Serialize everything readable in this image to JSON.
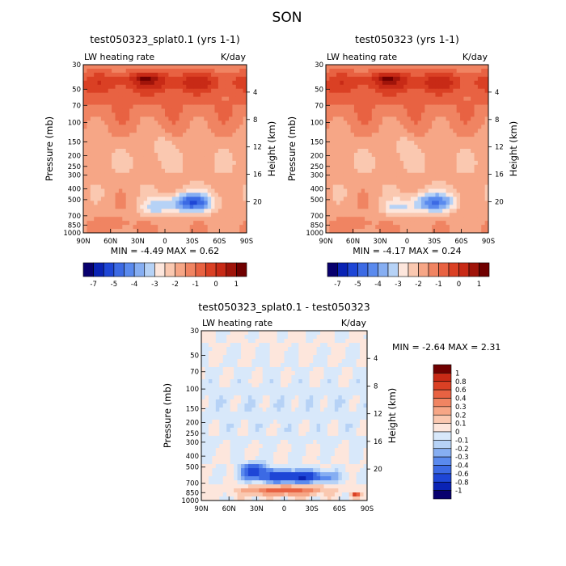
{
  "chart_data": {
    "type": "heatmap",
    "title": "SON",
    "colors": {
      "full_scale": [
        "#08006e",
        "#0a23b4",
        "#1e46d6",
        "#3c6ae4",
        "#5a8aee",
        "#86aef2",
        "#b6d2f6",
        "#fde6dc",
        "#fac8b0",
        "#f6a686",
        "#f08462",
        "#e86242",
        "#da4024",
        "#c82a16",
        "#a0140a",
        "#700000"
      ],
      "diff_scale": [
        "#08006e",
        "#0a23b4",
        "#1e46d6",
        "#3c6ae4",
        "#5a8aee",
        "#86aef2",
        "#b6d2f6",
        "#d8e8fa",
        "#fde6dc",
        "#fac8b0",
        "#f6a686",
        "#f08462",
        "#e86242",
        "#da4024",
        "#c82a16",
        "#700000"
      ]
    },
    "panels": [
      {
        "id": "p1",
        "title": "test050323_splat0.1 (yrs 1-1)",
        "left_label": "LW heating rate",
        "right_label": "K/day",
        "min_max": "MIN =   -4.49   MAX =    0.62",
        "colorbar_labels": [
          "-7",
          "-5",
          "-4",
          "-3",
          "-2",
          "-1",
          "0",
          "1"
        ]
      },
      {
        "id": "p2",
        "title": "test050323 (yrs 1-1)",
        "left_label": "LW heating rate",
        "right_label": "K/day",
        "min_max": "MIN =   -4.17   MAX =    0.24",
        "colorbar_labels": [
          "-7",
          "-5",
          "-4",
          "-3",
          "-2",
          "-1",
          "0",
          "1"
        ]
      },
      {
        "id": "p3",
        "title": "test050323_splat0.1 - test050323",
        "left_label": "LW heating rate",
        "right_label": "K/day",
        "min_max": "MIN =   -2.64   MAX =    2.31",
        "colorbar_labels": [
          "1",
          "0.8",
          "0.6",
          "0.4",
          "0.3",
          "0.2",
          "0.1",
          "0",
          "-0.1",
          "-0.2",
          "-0.3",
          "-0.4",
          "-0.6",
          "-0.8",
          "-1"
        ]
      }
    ],
    "xticks": [
      "90N",
      "60N",
      "30N",
      "0",
      "30S",
      "60S",
      "90S"
    ],
    "yticks_pressure": [
      {
        "label": "30",
        "p": 30
      },
      {
        "label": "50",
        "p": 50
      },
      {
        "label": "70",
        "p": 70
      },
      {
        "label": "100",
        "p": 100
      },
      {
        "label": "150",
        "p": 150
      },
      {
        "label": "200",
        "p": 200
      },
      {
        "label": "250",
        "p": 250
      },
      {
        "label": "300",
        "p": 300
      },
      {
        "label": "400",
        "p": 400
      },
      {
        "label": "500",
        "p": 500
      },
      {
        "label": "700",
        "p": 700
      },
      {
        "label": "850",
        "p": 850
      },
      {
        "label": "1000",
        "p": 1000
      }
    ],
    "yticks_height": [
      {
        "label": "20",
        "z": 20
      },
      {
        "label": "16",
        "z": 16
      },
      {
        "label": "12",
        "z": 12
      },
      {
        "label": "8",
        "z": 8
      },
      {
        "label": "4",
        "z": 4
      }
    ],
    "ylabel_left": "Pressure (mb)",
    "ylabel_right": "Height (km)",
    "pressure_range": [
      30,
      1000
    ],
    "lat_range": [
      "90N",
      "90S"
    ]
  }
}
